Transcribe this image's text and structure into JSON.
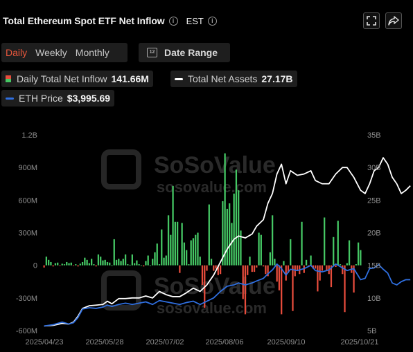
{
  "header": {
    "title": "Total Ethereum Spot ETF Net Inflow",
    "timezone": "EST",
    "info_glyph": "i"
  },
  "toolbar": {
    "periods": [
      {
        "label": "Daily",
        "active": true
      },
      {
        "label": "Weekly",
        "active": false
      },
      {
        "label": "Monthly",
        "active": false
      }
    ],
    "date_range_label": "Date Range",
    "calendar_icon_text": "12"
  },
  "legend": {
    "inflow": {
      "label": "Daily Total Net Inflow",
      "value": "141.66M"
    },
    "assets": {
      "label": "Total Net Assets",
      "value": "27.17B",
      "color": "#ffffff"
    },
    "price": {
      "label": "ETH Price",
      "value": "$3,995.69",
      "color": "#2f6fe0"
    }
  },
  "watermark": {
    "brand": "SoSoValue",
    "url": "sosovalue.com"
  },
  "colors": {
    "positive": "#45c764",
    "negative": "#e74c3c",
    "assets_line": "#ffffff",
    "price_line": "#2f6fe0"
  },
  "chart_data": {
    "type": "bar",
    "title": "Total Ethereum Spot ETF Net Inflow",
    "x_ticks": [
      "2025/04/23",
      "2025/05/28",
      "2025/07/02",
      "2025/08/06",
      "2025/09/10",
      "2025/10/21"
    ],
    "y_left": {
      "ticks": [
        "-600M",
        "-300M",
        "0",
        "300M",
        "600M",
        "900M",
        "1.2B"
      ],
      "range": [
        -600,
        1200
      ],
      "unit": "M"
    },
    "y_right": {
      "ticks": [
        "5B",
        "10B",
        "15B",
        "20B",
        "25B",
        "30B",
        "35B"
      ],
      "range": [
        5,
        35
      ],
      "unit": "B"
    },
    "series": [
      {
        "name": "Daily Total Net Inflow",
        "kind": "bar",
        "values": [
          -20,
          80,
          50,
          30,
          -10,
          20,
          25,
          -5,
          15,
          10,
          30,
          20,
          25,
          -5,
          10,
          -10,
          15,
          30,
          70,
          50,
          20,
          60,
          10,
          -10,
          100,
          80,
          45,
          50,
          30,
          25,
          0,
          240,
          50,
          60,
          40,
          60,
          100,
          10,
          5,
          100,
          20,
          45,
          10,
          0,
          -10,
          40,
          90,
          0,
          60,
          120,
          200,
          10,
          330,
          70,
          90,
          460,
          280,
          730,
          400,
          400,
          -70,
          390,
          210,
          140,
          10,
          230,
          250,
          280,
          300,
          80,
          -180,
          -390,
          -50,
          560,
          60,
          -50,
          -30,
          -90,
          -80,
          590,
          1030,
          520,
          570,
          390,
          660,
          880,
          690,
          320,
          -310,
          -450,
          -90,
          80,
          -60,
          -60,
          -20,
          300,
          280,
          -10,
          -80,
          -100,
          120,
          460,
          60,
          -150,
          -230,
          -450,
          40,
          -140,
          -70,
          240,
          -420,
          -100,
          -50,
          -80,
          400,
          -70,
          50,
          -10,
          90,
          -30,
          -30,
          -240,
          -140,
          -50,
          440,
          -50,
          -80,
          -200,
          260,
          -15,
          410,
          10,
          -80,
          -430,
          20,
          230,
          -70,
          -250,
          10,
          210,
          140
        ]
      },
      {
        "name": "Total Net Assets",
        "kind": "line",
        "axis": "right",
        "points": [
          [
            0,
            5.7
          ],
          [
            4,
            5.8
          ],
          [
            8,
            6.1
          ],
          [
            11,
            6.0
          ],
          [
            13,
            6.3
          ],
          [
            15,
            7.2
          ],
          [
            17,
            8.4
          ],
          [
            20,
            8.8
          ],
          [
            23,
            8.9
          ],
          [
            26,
            9.0
          ],
          [
            28,
            9.5
          ],
          [
            30,
            9.1
          ],
          [
            33,
            9.9
          ],
          [
            36,
            9.9
          ],
          [
            39,
            10.0
          ],
          [
            42,
            10.0
          ],
          [
            45,
            10.3
          ],
          [
            48,
            10.0
          ],
          [
            51,
            11.0
          ],
          [
            54,
            10.5
          ],
          [
            57,
            10.2
          ],
          [
            60,
            10.2
          ],
          [
            63,
            10.8
          ],
          [
            66,
            11.5
          ],
          [
            69,
            11.0
          ],
          [
            72,
            12.0
          ],
          [
            75,
            13.5
          ],
          [
            78,
            15.5
          ],
          [
            81,
            17.5
          ],
          [
            84,
            19.0
          ],
          [
            86,
            19.5
          ],
          [
            89,
            19.2
          ],
          [
            92,
            19.8
          ],
          [
            94,
            21.0
          ],
          [
            97,
            22.0
          ],
          [
            99,
            24.5
          ],
          [
            101,
            26.0
          ],
          [
            103,
            29.0
          ],
          [
            105,
            30.5
          ],
          [
            107,
            27.5
          ],
          [
            109,
            29.5
          ],
          [
            112,
            28.8
          ],
          [
            115,
            29.0
          ],
          [
            118,
            29.5
          ],
          [
            120,
            28.0
          ],
          [
            123,
            27.5
          ],
          [
            126,
            27.5
          ],
          [
            129,
            29.0
          ],
          [
            132,
            30.0
          ],
          [
            134,
            30.0
          ],
          [
            137,
            28.5
          ],
          [
            140,
            26.5
          ],
          [
            142,
            26.0
          ],
          [
            144,
            27.5
          ],
          [
            146,
            29.5
          ],
          [
            148,
            30.0
          ],
          [
            150,
            31.5
          ],
          [
            152,
            30.5
          ],
          [
            154,
            28.5
          ],
          [
            156,
            27.5
          ],
          [
            158,
            26.0
          ],
          [
            160,
            26.5
          ],
          [
            162,
            27.2
          ]
        ]
      },
      {
        "name": "ETH Price",
        "kind": "line",
        "axis": "right",
        "points": [
          [
            0,
            5.7
          ],
          [
            4,
            5.9
          ],
          [
            8,
            6.3
          ],
          [
            11,
            6.0
          ],
          [
            13,
            6.2
          ],
          [
            15,
            7.0
          ],
          [
            17,
            8.3
          ],
          [
            20,
            8.5
          ],
          [
            23,
            8.4
          ],
          [
            26,
            8.6
          ],
          [
            28,
            8.9
          ],
          [
            30,
            8.7
          ],
          [
            33,
            9.0
          ],
          [
            36,
            9.2
          ],
          [
            39,
            9.0
          ],
          [
            42,
            9.2
          ],
          [
            45,
            9.4
          ],
          [
            48,
            9.0
          ],
          [
            51,
            9.6
          ],
          [
            54,
            9.4
          ],
          [
            57,
            9.2
          ],
          [
            60,
            9.0
          ],
          [
            63,
            9.3
          ],
          [
            66,
            9.5
          ],
          [
            69,
            9.0
          ],
          [
            72,
            9.5
          ],
          [
            75,
            10.0
          ],
          [
            78,
            11.0
          ],
          [
            81,
            11.8
          ],
          [
            84,
            12.0
          ],
          [
            86,
            12.3
          ],
          [
            89,
            12.0
          ],
          [
            92,
            12.3
          ],
          [
            94,
            12.6
          ],
          [
            97,
            13.0
          ],
          [
            99,
            13.7
          ],
          [
            101,
            14.3
          ],
          [
            103,
            15.2
          ],
          [
            105,
            14.5
          ],
          [
            107,
            13.5
          ],
          [
            109,
            14.4
          ],
          [
            112,
            14.2
          ],
          [
            115,
            14.5
          ],
          [
            118,
            15.0
          ],
          [
            120,
            14.2
          ],
          [
            123,
            14.0
          ],
          [
            126,
            14.3
          ],
          [
            129,
            15.2
          ],
          [
            132,
            14.6
          ],
          [
            134,
            14.2
          ],
          [
            137,
            14.5
          ],
          [
            140,
            12.8
          ],
          [
            142,
            13.0
          ],
          [
            144,
            14.5
          ],
          [
            146,
            14.6
          ],
          [
            148,
            15.1
          ],
          [
            150,
            14.4
          ],
          [
            152,
            13.8
          ],
          [
            154,
            12.3
          ],
          [
            156,
            12.0
          ],
          [
            158,
            12.5
          ],
          [
            160,
            12.8
          ],
          [
            162,
            12.8
          ]
        ]
      }
    ]
  }
}
